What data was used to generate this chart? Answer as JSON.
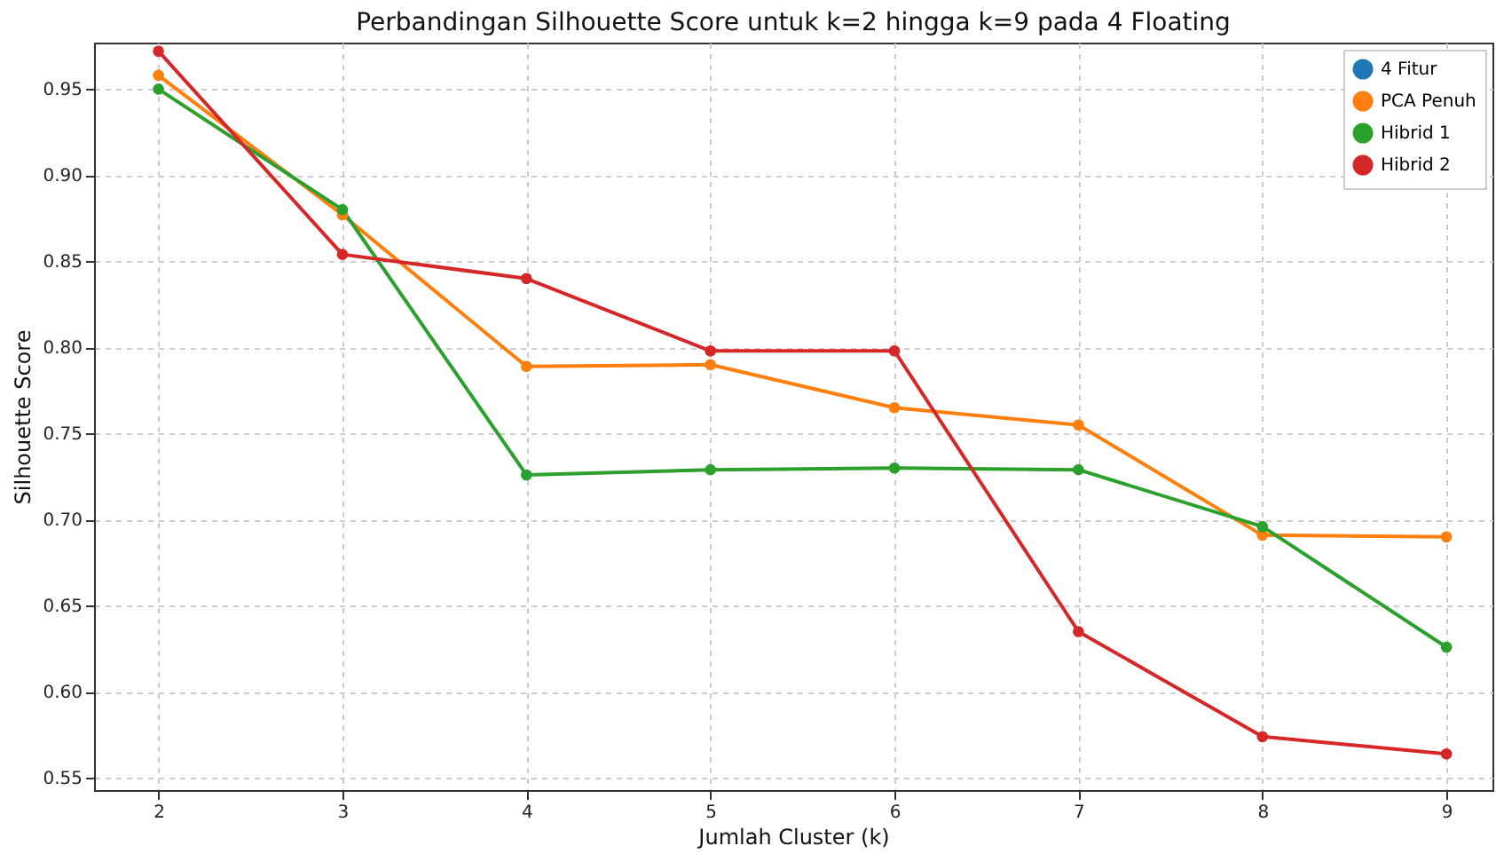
{
  "chart_data": {
    "type": "line",
    "title": "Perbandingan Silhouette Score untuk k=2 hingga k=9 pada 4 Floating",
    "xlabel": "Jumlah Cluster (k)",
    "ylabel": "Silhouette Score",
    "x": [
      2,
      3,
      4,
      5,
      6,
      7,
      8,
      9
    ],
    "series": [
      {
        "name": "4 Fitur",
        "color": "#1f77b4",
        "values": [
          null,
          null,
          null,
          null,
          null,
          null,
          null,
          null
        ]
      },
      {
        "name": "PCA Penuh",
        "color": "#ff7f0e",
        "values": [
          0.958,
          0.877,
          0.789,
          0.79,
          0.765,
          0.755,
          0.691,
          0.69
        ]
      },
      {
        "name": "Hibrid 1",
        "color": "#2ca02c",
        "values": [
          0.95,
          0.88,
          0.726,
          0.729,
          0.73,
          0.729,
          0.696,
          0.626
        ]
      },
      {
        "name": "Hibrid 2",
        "color": "#d62728",
        "values": [
          0.972,
          0.854,
          0.84,
          0.798,
          0.798,
          0.635,
          0.574,
          0.564
        ]
      }
    ],
    "xlim": [
      1.65,
      9.25
    ],
    "ylim": [
      0.543,
      0.977
    ],
    "xticks": [
      2,
      3,
      4,
      5,
      6,
      7,
      8,
      9
    ],
    "yticks": [
      0.55,
      {
        "value": 0.6,
        "label": "0.60"
      },
      0.65,
      {
        "value": 0.7,
        "label": "0.70"
      },
      0.75,
      {
        "value": 0.8,
        "label": "0.80"
      },
      0.85,
      {
        "value": 0.9,
        "label": "0.90"
      },
      0.95
    ],
    "grid": true,
    "legend": "top right",
    "marker": "circle",
    "line_style": "solid"
  }
}
